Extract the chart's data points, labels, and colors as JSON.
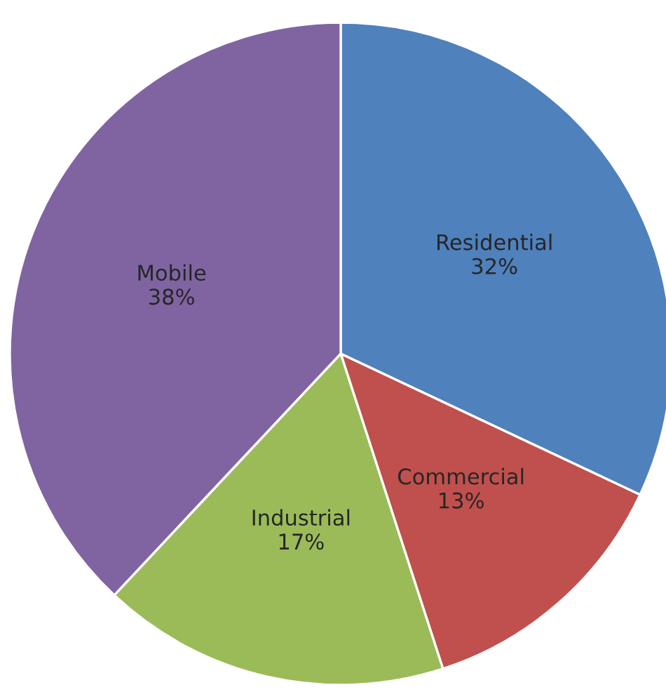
{
  "chart_data": {
    "type": "pie",
    "categories": [
      "Residential",
      "Commercial",
      "Industrial",
      "Mobile"
    ],
    "values": [
      32,
      13,
      17,
      38
    ],
    "colors": [
      "#4f81bd",
      "#c0504d",
      "#9bbb59",
      "#8064a2"
    ],
    "value_labels": [
      "32%",
      "13%",
      "17%",
      "38%"
    ]
  }
}
